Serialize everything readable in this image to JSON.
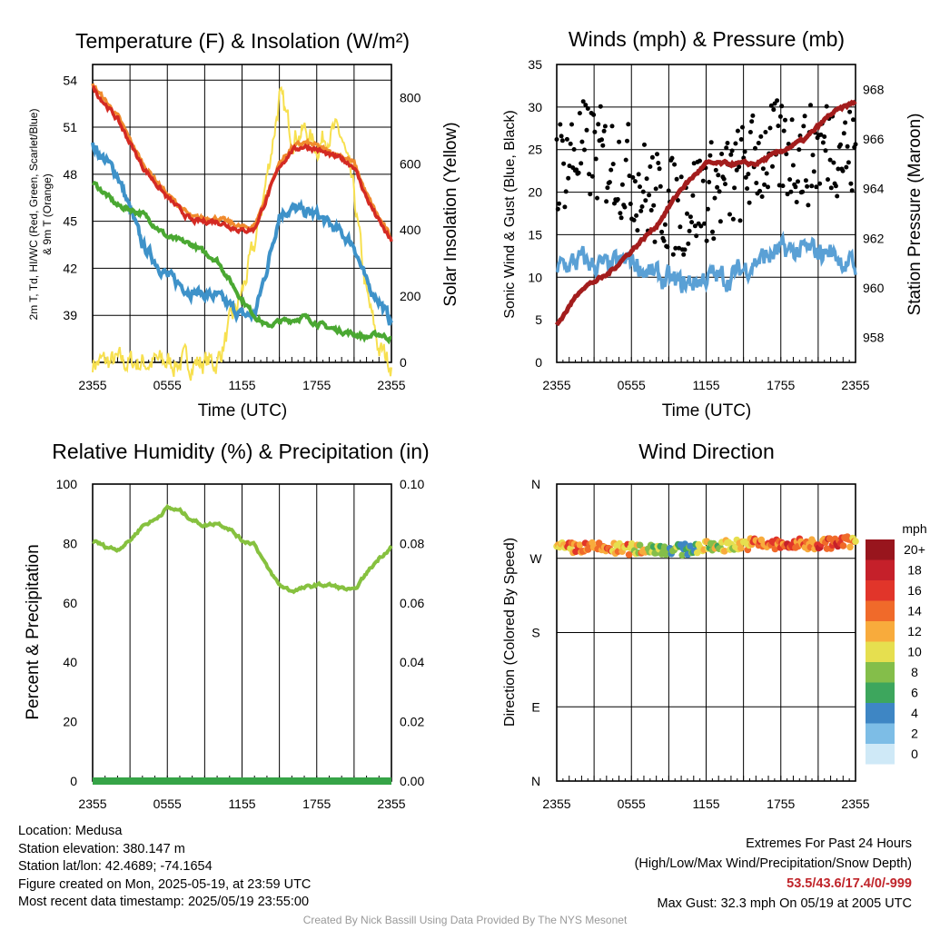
{
  "credit": "Created By Nick Bassill Using Data Provided By The NYS Mesonet",
  "location": {
    "location": "Location: Medusa",
    "elevation": "Station elevation: 380.147 m",
    "latlon": "Station lat/lon: 42.4689; -74.1654",
    "created": "Figure created on Mon, 2025-05-19, at 23:59 UTC",
    "recent": "Most recent data timestamp: 2025/05/19 23:55:00"
  },
  "extremes": {
    "title": "Extremes For Past 24 Hours",
    "subtitle": "(High/Low/Max Wind/Precipitation/Snow Depth)",
    "values": "53.5/43.6/17.4/0/-999",
    "max_gust": "Max Gust: 32.3 mph On 05/19 at 2005 UTC"
  },
  "colors": {
    "temperature": "#d42a23",
    "nine_m_temperature": "#f08b2e",
    "dewpoint": "#3e92c9",
    "wind_chill": "#4aa832",
    "insolation": "#f7e04f",
    "wind_speed": "#5aa0d5",
    "gust": "#000000",
    "pressure": "#a31d1d",
    "humidity": "#86c13f",
    "precip": "#36a447"
  },
  "chart_data": [
    {
      "type": "line",
      "title": "Temperature (F) & Insolation (W/m²)",
      "xlabel": "Time (UTC)",
      "x_ticks": [
        "2355",
        "0555",
        "1155",
        "1755",
        "2355"
      ],
      "ylabel_line1": "2m T, Td, HI/WC (Red, Green, Scarlet/Blue)",
      "ylabel_line2": "& 9m T (Orange)",
      "ylabel_right": "Solar Insolation (Yellow)",
      "ylim": [
        36,
        55
      ],
      "yticks": [
        39,
        42,
        45,
        48,
        51,
        54
      ],
      "y2lim": [
        0,
        900
      ],
      "y2ticks": [
        0,
        200,
        400,
        600,
        800
      ],
      "grid": true,
      "x_hours": [
        0,
        2,
        4,
        6,
        8,
        10,
        12,
        13,
        14,
        15,
        16,
        17,
        18,
        19,
        20,
        21,
        22,
        23,
        24
      ],
      "series": [
        {
          "name": "2m T (Red)",
          "axis": "left",
          "values": [
            53.5,
            51.5,
            48.5,
            46.5,
            45.0,
            45.0,
            44.4,
            44.5,
            46.5,
            48.5,
            49.5,
            49.8,
            49.6,
            49.2,
            49.0,
            48.5,
            46.5,
            45.0,
            43.7
          ]
        },
        {
          "name": "Td (Green)",
          "axis": "left",
          "values": [
            47.5,
            46.0,
            45.5,
            44.0,
            43.5,
            42.5,
            40.0,
            39.0,
            38.3,
            38.6,
            38.7,
            38.9,
            38.5,
            38.2,
            38.0,
            37.8,
            37.6,
            37.8,
            37.5
          ]
        },
        {
          "name": "HI/WC (Blue)",
          "axis": "left",
          "values": [
            49.8,
            48.0,
            43.5,
            41.5,
            40.5,
            40.2,
            39.0,
            39.0,
            42.0,
            45.5,
            45.8,
            45.6,
            45.4,
            44.8,
            44.2,
            43.5,
            41.0,
            40.0,
            38.5
          ]
        },
        {
          "name": "Solar Insolation (Yellow)",
          "axis": "right",
          "values": [
            0,
            0,
            0,
            0,
            0,
            0,
            210,
            350,
            560,
            800,
            690,
            700,
            650,
            700,
            680,
            500,
            200,
            40,
            0
          ]
        }
      ]
    },
    {
      "type": "scatter",
      "title": "Winds (mph) & Pressure (mb)",
      "xlabel": "Time (UTC)",
      "x_ticks": [
        "2355",
        "0555",
        "1155",
        "1755",
        "2355"
      ],
      "ylabel": "Sonic Wind & Gust (Blue, Black)",
      "ylabel_right": "Station Pressure (Maroon)",
      "ylim": [
        0,
        35
      ],
      "yticks": [
        0,
        5,
        10,
        15,
        20,
        25,
        30,
        35
      ],
      "y2lim": [
        957,
        969
      ],
      "y2ticks": [
        958,
        960,
        962,
        964,
        966,
        968
      ],
      "grid": true,
      "x_hours": [
        0,
        2,
        4,
        6,
        8,
        10,
        12,
        14,
        16,
        18,
        20,
        22,
        24
      ],
      "series": [
        {
          "name": "Sonic Wind (Blue)",
          "axis": "left",
          "values": [
            11,
            12,
            11,
            12,
            10,
            9,
            10,
            10,
            12,
            13,
            13,
            13,
            11
          ]
        },
        {
          "name": "Gust (Black)",
          "axis": "left",
          "values": [
            23,
            25,
            24,
            22,
            19,
            18,
            20,
            21,
            24,
            25,
            24,
            26,
            24
          ]
        },
        {
          "name": "Station Pressure (Maroon)",
          "axis": "right",
          "values": [
            958.5,
            960.0,
            960.5,
            961.5,
            962.5,
            964.0,
            965.0,
            965.0,
            965.0,
            965.5,
            966.0,
            967.0,
            967.5
          ]
        }
      ]
    },
    {
      "type": "line",
      "title": "Relative Humidity (%) & Precipitation (in)",
      "ylabel": "Percent & Precipitation",
      "x_ticks": [
        "2355",
        "0555",
        "1155",
        "1755",
        "2355"
      ],
      "ylim": [
        0,
        100
      ],
      "yticks": [
        0,
        20,
        40,
        60,
        80,
        100
      ],
      "y2lim": [
        0,
        0.1
      ],
      "y2ticks": [
        "0.00",
        "0.02",
        "0.04",
        "0.06",
        "0.08",
        "0.10"
      ],
      "grid": true,
      "x_hours": [
        0,
        1,
        2,
        3,
        4,
        5,
        6,
        7,
        8,
        9,
        10,
        11,
        12,
        13,
        14,
        15,
        16,
        17,
        18,
        19,
        20,
        21,
        22,
        23,
        24
      ],
      "series": [
        {
          "name": "Relative Humidity",
          "axis": "left",
          "values": [
            81,
            79,
            78,
            81,
            86,
            88,
            92,
            91,
            88,
            86,
            87,
            85,
            81,
            80,
            72,
            66,
            64,
            65,
            66,
            66,
            65,
            64,
            70,
            75,
            79
          ]
        },
        {
          "name": "Precipitation",
          "axis": "right",
          "values": [
            0,
            0,
            0,
            0,
            0,
            0,
            0,
            0,
            0,
            0,
            0,
            0,
            0,
            0,
            0,
            0,
            0,
            0,
            0,
            0,
            0,
            0,
            0,
            0,
            0
          ]
        }
      ]
    },
    {
      "type": "scatter",
      "title": "Wind Direction",
      "ylabel": "Direction (Colored By Speed)",
      "x_ticks": [
        "2355",
        "0555",
        "1155",
        "1755",
        "2355"
      ],
      "y_ticks": [
        "N",
        "E",
        "S",
        "W",
        "N"
      ],
      "ylim": [
        0,
        360
      ],
      "grid": true,
      "colorbar_title": "mph",
      "colorbar_labels": [
        "0",
        "2",
        "4",
        "6",
        "8",
        "10",
        "12",
        "14",
        "16",
        "18",
        "20+"
      ],
      "colorbar_colors": [
        "#cfe9f7",
        "#7dbde6",
        "#3e86c4",
        "#3da65d",
        "#84be4a",
        "#e6df4f",
        "#f8ab3c",
        "#f06a2a",
        "#e1352a",
        "#c5202a",
        "#98151d"
      ],
      "x_hours": [
        0,
        2,
        4,
        6,
        8,
        10,
        12,
        14,
        16,
        18,
        20,
        22,
        24
      ],
      "direction_deg": [
        282,
        283,
        282,
        281,
        282,
        280,
        284,
        286,
        288,
        286,
        287,
        288,
        291
      ],
      "speed_mph": [
        12,
        15,
        13,
        12,
        8,
        6,
        9,
        10,
        13,
        15,
        14,
        16,
        12
      ]
    }
  ]
}
